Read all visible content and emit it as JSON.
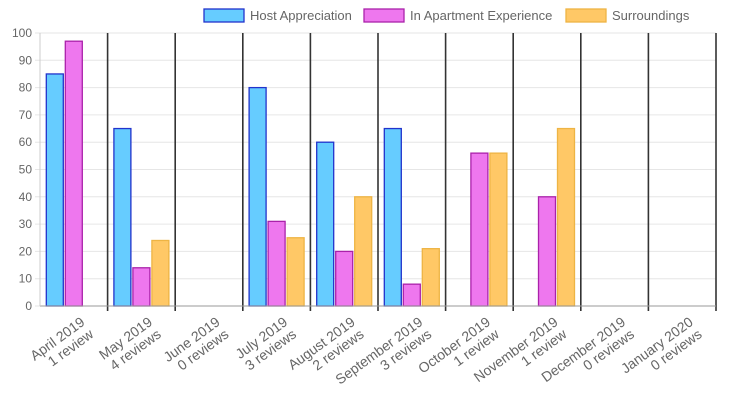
{
  "chart_data": {
    "type": "bar",
    "categories": [
      [
        "April 2019",
        "1 review"
      ],
      [
        "May 2019",
        "4 reviews"
      ],
      [
        "June 2019",
        "0 reviews"
      ],
      [
        "July 2019",
        "3 reviews"
      ],
      [
        "August 2019",
        "2 reviews"
      ],
      [
        "September 2019",
        "3 reviews"
      ],
      [
        "October 2019",
        "1 review"
      ],
      [
        "November 2019",
        "1 review"
      ],
      [
        "December 2019",
        "0 reviews"
      ],
      [
        "January 2020",
        "0 reviews"
      ]
    ],
    "series": [
      {
        "name": "Host Appreciation",
        "color": "#66ccff",
        "border": "#2233cc",
        "values": [
          85,
          65,
          null,
          80,
          60,
          65,
          null,
          null,
          null,
          null
        ]
      },
      {
        "name": "In Apartment Experience",
        "color": "#ee77ee",
        "border": "#aa22aa",
        "values": [
          97,
          14,
          null,
          31,
          20,
          8,
          56,
          40,
          null,
          null
        ]
      },
      {
        "name": "Surroundings",
        "color": "#ffc866",
        "border": "#eeb444",
        "values": [
          null,
          24,
          null,
          25,
          40,
          21,
          56,
          65,
          null,
          null
        ]
      }
    ],
    "yticks": [
      0,
      10,
      20,
      30,
      40,
      50,
      60,
      70,
      80,
      90,
      100
    ],
    "ylim": [
      0,
      100
    ],
    "legend_position": "top",
    "grid": true
  }
}
